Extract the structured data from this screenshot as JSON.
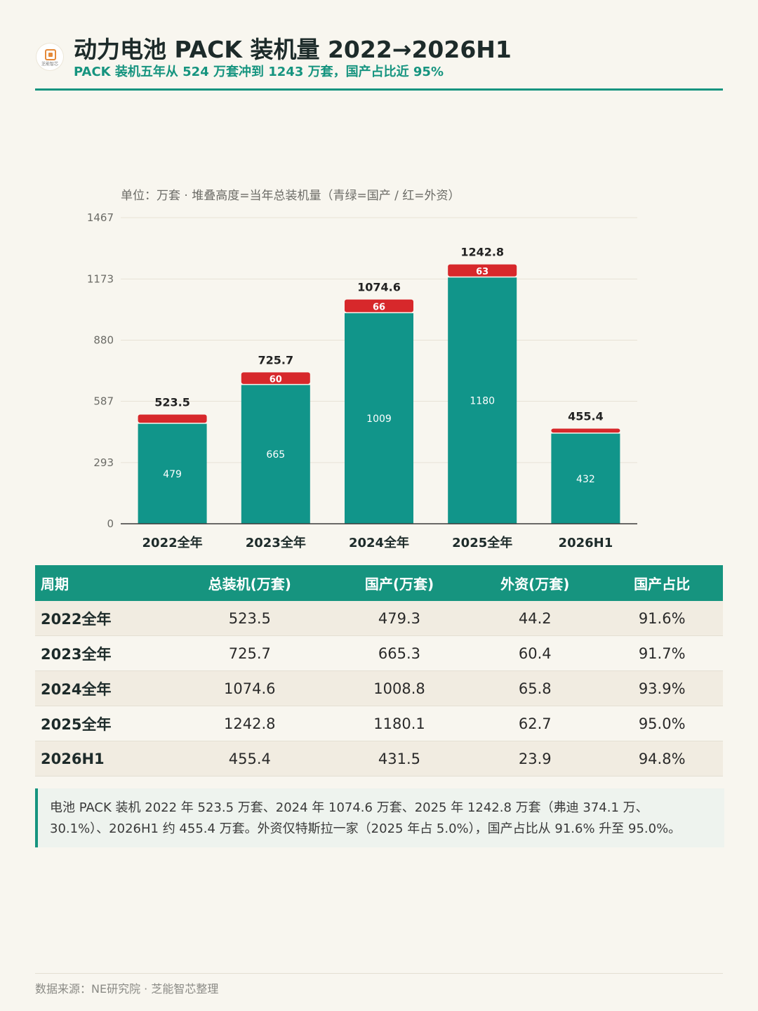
{
  "header": {
    "logo_text": "芝能智芯",
    "title": "动力电池 PACK 装机量 2022→2026H1",
    "subtitle": "PACK 装机五年从 524 万套冲到 1243 万套，国产占比近 95%"
  },
  "colors": {
    "accent": "#16947f",
    "domestic": "#11958a",
    "foreign": "#d7282b",
    "background": "#f8f6ef"
  },
  "chart_data": {
    "type": "bar",
    "stacked": true,
    "note": "单位：万套 · 堆叠高度=当年总装机量（青绿=国产 / 红=外资）",
    "categories": [
      "2022全年",
      "2023全年",
      "2024全年",
      "2025全年",
      "2026H1"
    ],
    "ylim": [
      0,
      1467
    ],
    "yticks": [
      0,
      293,
      587,
      880,
      1173,
      1467
    ],
    "grid": true,
    "series": [
      {
        "key": "domestic",
        "values": [
          479,
          665,
          1009,
          1180,
          432
        ],
        "labels": [
          "479",
          "665",
          "1009",
          "1180",
          "432"
        ]
      },
      {
        "key": "foreign",
        "values": [
          44.2,
          60.4,
          65.8,
          62.7,
          23.9
        ],
        "labels": [
          "",
          "60",
          "66",
          "63",
          ""
        ]
      }
    ],
    "totals": [
      "523.5",
      "725.7",
      "1074.6",
      "1242.8",
      "455.4"
    ]
  },
  "table": {
    "headers": [
      "周期",
      "总装机(万套)",
      "国产(万套)",
      "外资(万套)",
      "国产占比"
    ],
    "rows": [
      [
        "2022全年",
        "523.5",
        "479.3",
        "44.2",
        "91.6%"
      ],
      [
        "2023全年",
        "725.7",
        "665.3",
        "60.4",
        "91.7%"
      ],
      [
        "2024全年",
        "1074.6",
        "1008.8",
        "65.8",
        "93.9%"
      ],
      [
        "2025全年",
        "1242.8",
        "1180.1",
        "62.7",
        "95.0%"
      ],
      [
        "2026H1",
        "455.4",
        "431.5",
        "23.9",
        "94.8%"
      ]
    ]
  },
  "note": {
    "line1": "电池 PACK 装机 2022 年 523.5 万套、2024 年 1074.6 万套、2025 年 1242.8 万套（弗迪 374.1 万、",
    "line2": "30.1%）、2026H1 约 455.4 万套。外资仅特斯拉一家（2025 年占 5.0%），国产占比从 91.6% 升至 95.0%。"
  },
  "footer": {
    "source": "数据来源：NE研究院 · 芝能智芯整理"
  }
}
